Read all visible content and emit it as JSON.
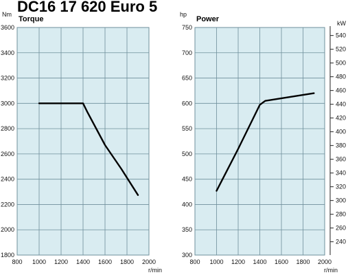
{
  "page_title": "DC16 17 620 Euro 5",
  "colors": {
    "plot_background": "#d9ecf1",
    "grid": "#6e8f9b",
    "line": "#000000"
  },
  "chart_data": [
    {
      "type": "line",
      "title": "Torque",
      "ylabel": "Nm",
      "xlabel": "r/min",
      "xlim": [
        800,
        2000
      ],
      "ylim": [
        1800,
        3600
      ],
      "grid": true,
      "x_ticks": [
        "800",
        "1000",
        "1200",
        "1400",
        "1600",
        "1800",
        "2000"
      ],
      "y_ticks": [
        "1800",
        "2000",
        "2200",
        "2400",
        "2600",
        "2800",
        "3000",
        "3200",
        "3400",
        "3600"
      ],
      "x": [
        1000,
        1400,
        1440,
        1600,
        1750,
        1900
      ],
      "y": [
        3000,
        3000,
        2930,
        2670,
        2480,
        2275
      ]
    },
    {
      "type": "line",
      "title": "Power",
      "ylabel": "hp",
      "ylabel_right": "kW",
      "xlabel": "r/min",
      "xlim": [
        800,
        2000
      ],
      "ylim": [
        300,
        750
      ],
      "grid": true,
      "x_ticks": [
        "800",
        "1000",
        "1200",
        "1400",
        "1600",
        "1800",
        "2000"
      ],
      "y_ticks": [
        "300",
        "350",
        "400",
        "450",
        "500",
        "550",
        "600",
        "650",
        "700",
        "750"
      ],
      "y_ticks_right": [
        "240",
        "260",
        "280",
        "300",
        "320",
        "340",
        "360",
        "380",
        "400",
        "420",
        "440",
        "460",
        "480",
        "500",
        "520",
        "540"
      ],
      "x": [
        1000,
        1200,
        1400,
        1450,
        1900
      ],
      "y": [
        427,
        510,
        597,
        605,
        620
      ]
    }
  ]
}
